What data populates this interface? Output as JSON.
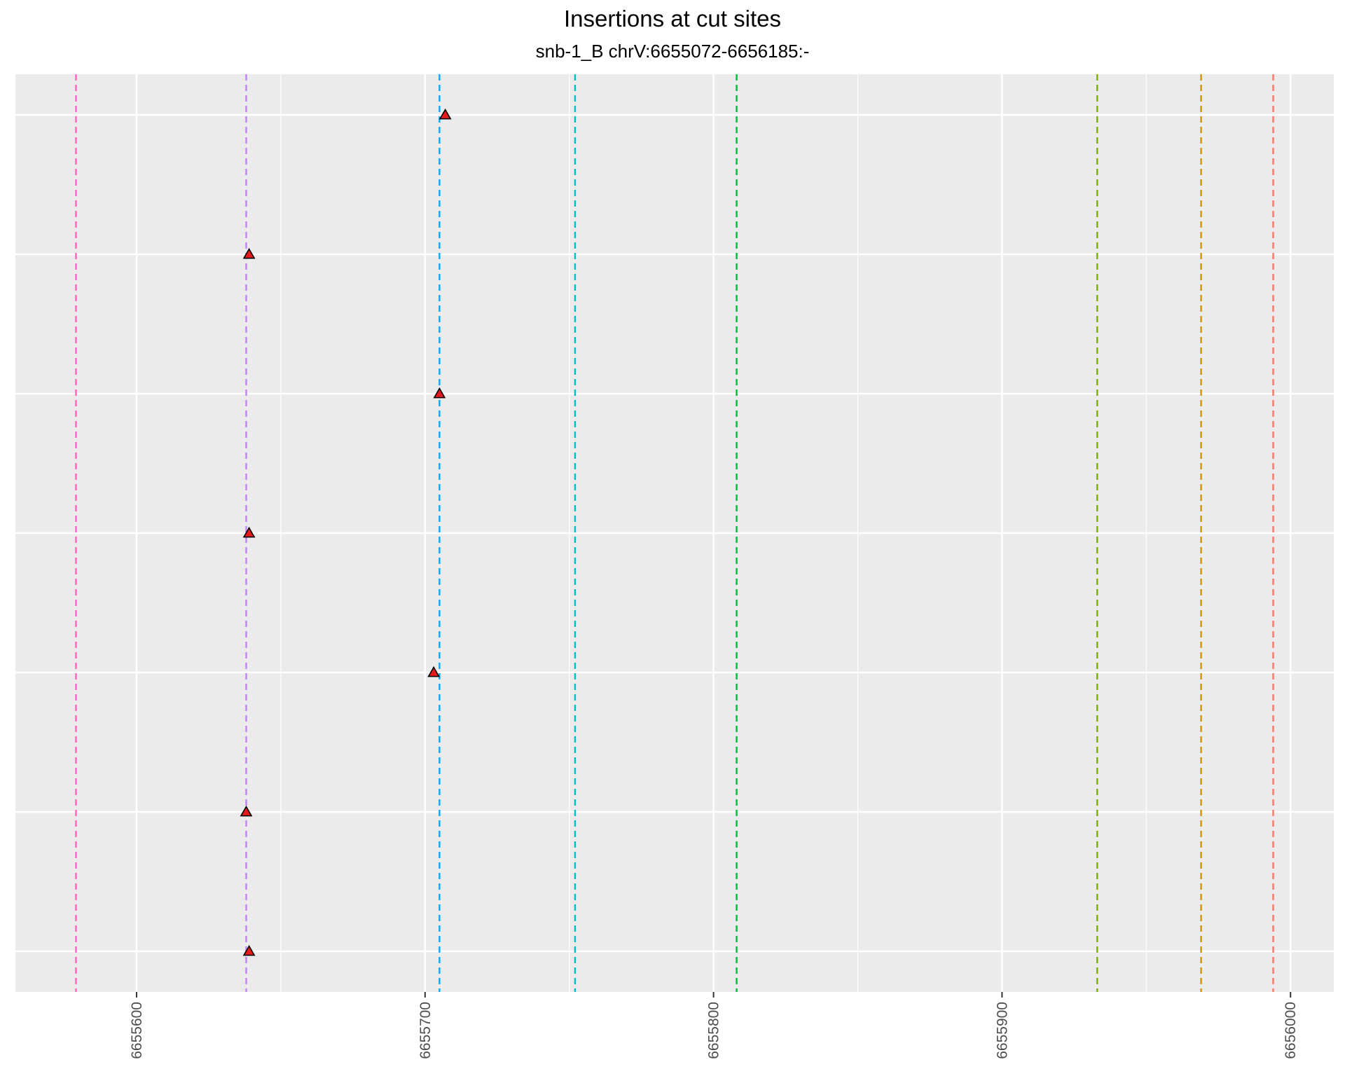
{
  "chart_data": {
    "type": "scatter",
    "title": "Insertions at cut sites",
    "subtitle": "snb-1_B chrV:6655072-6656185:-",
    "xlabel": "",
    "ylabel": "",
    "xlim": [
      6655558,
      6656015
    ],
    "x_ticks": [
      "6655600",
      "6655700",
      "6655800",
      "6655900",
      "6656000"
    ],
    "x_tick_values": [
      6655600,
      6655700,
      6655800,
      6655900,
      6656000
    ],
    "rows": 7,
    "points": [
      {
        "x": 6655707,
        "row": 1
      },
      {
        "x": 6655639,
        "row": 2
      },
      {
        "x": 6655705,
        "row": 3
      },
      {
        "x": 6655639,
        "row": 4
      },
      {
        "x": 6655703,
        "row": 5
      },
      {
        "x": 6655638,
        "row": 6
      },
      {
        "x": 6655639,
        "row": 7
      }
    ],
    "cut_sites": [
      {
        "x": 6655579,
        "color": "#FF61C3"
      },
      {
        "x": 6655638,
        "color": "#C77CFF"
      },
      {
        "x": 6655705,
        "color": "#00A9FF"
      },
      {
        "x": 6655752,
        "color": "#00BFC4"
      },
      {
        "x": 6655808,
        "color": "#00BA38"
      },
      {
        "x": 6655933,
        "color": "#7CAE00"
      },
      {
        "x": 6655969,
        "color": "#CD9600"
      },
      {
        "x": 6655994,
        "color": "#F8766D"
      }
    ],
    "grid": true,
    "legend": "none",
    "marker": "triangle",
    "marker_color": "#E41A1C",
    "panel_color": "#EBEBEB",
    "grid_color": "#FFFFFF"
  }
}
